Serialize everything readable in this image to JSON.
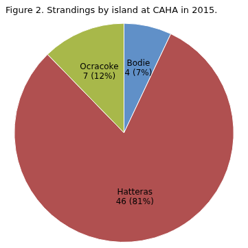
{
  "chart_data": {
    "type": "pie",
    "title": "Figure 2. Strandings by island at CAHA in 2015.",
    "categories": [
      "Bodie",
      "Hatteras",
      "Ocracoke"
    ],
    "values": [
      4,
      46,
      7
    ],
    "value_labels": [
      "4 (7%)",
      "46 (81%)",
      "7 (12%)"
    ],
    "colors": [
      "#6090c8",
      "#b05050",
      "#a8b84a"
    ],
    "data_labels": true
  }
}
